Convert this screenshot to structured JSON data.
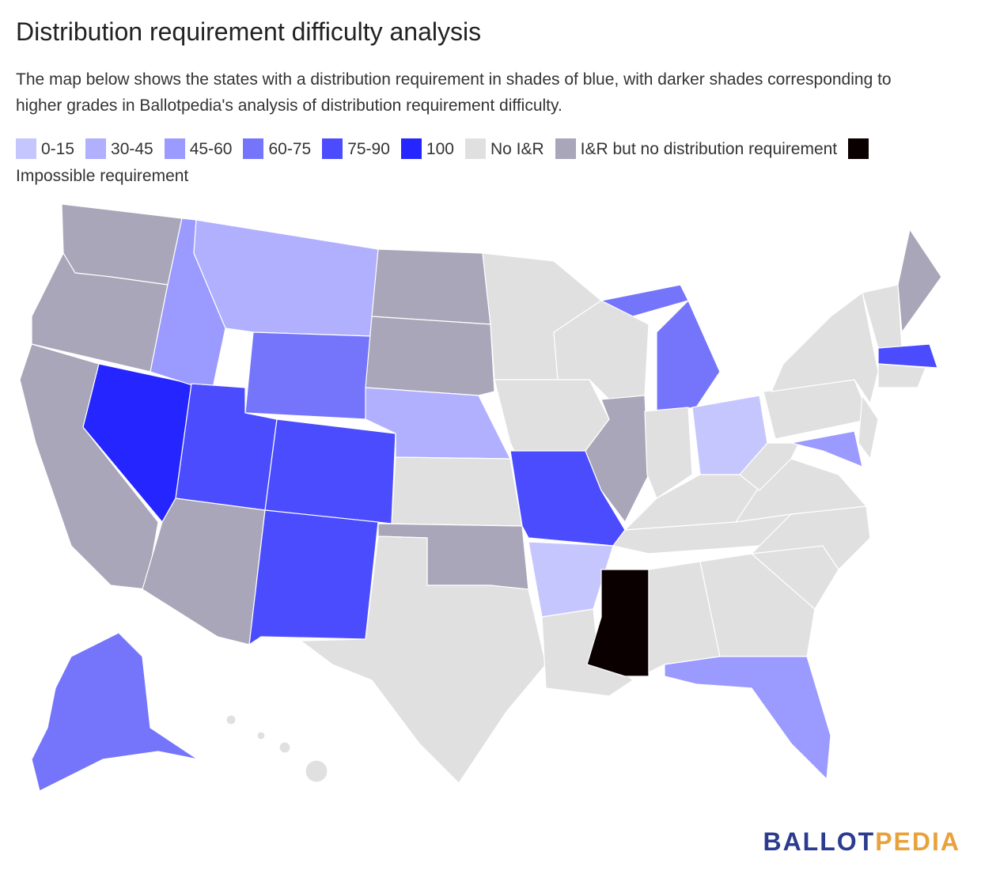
{
  "title": "Distribution requirement difficulty analysis",
  "description": "The map below shows the states with a distribution requirement in shades of blue, with darker shades corresponding to higher grades in Ballotpedia's analysis of distribution requirement difficulty.",
  "legend": [
    {
      "label": "0-15",
      "color": "#c6c6ff"
    },
    {
      "label": "30-45",
      "color": "#b0b0ff"
    },
    {
      "label": "45-60",
      "color": "#9a9aff"
    },
    {
      "label": "60-75",
      "color": "#7575fc"
    },
    {
      "label": "75-90",
      "color": "#4c4cff"
    },
    {
      "label": "100",
      "color": "#2525ff"
    },
    {
      "label": "No I&R",
      "color": "#e0e0e0"
    },
    {
      "label": "I&R but no distribution requirement",
      "color": "#a8a6b8"
    },
    {
      "label": "Impossible requirement",
      "color": "#0a0000"
    }
  ],
  "logo": {
    "part1": "BALLOT",
    "part2": "PEDIA"
  }
}
